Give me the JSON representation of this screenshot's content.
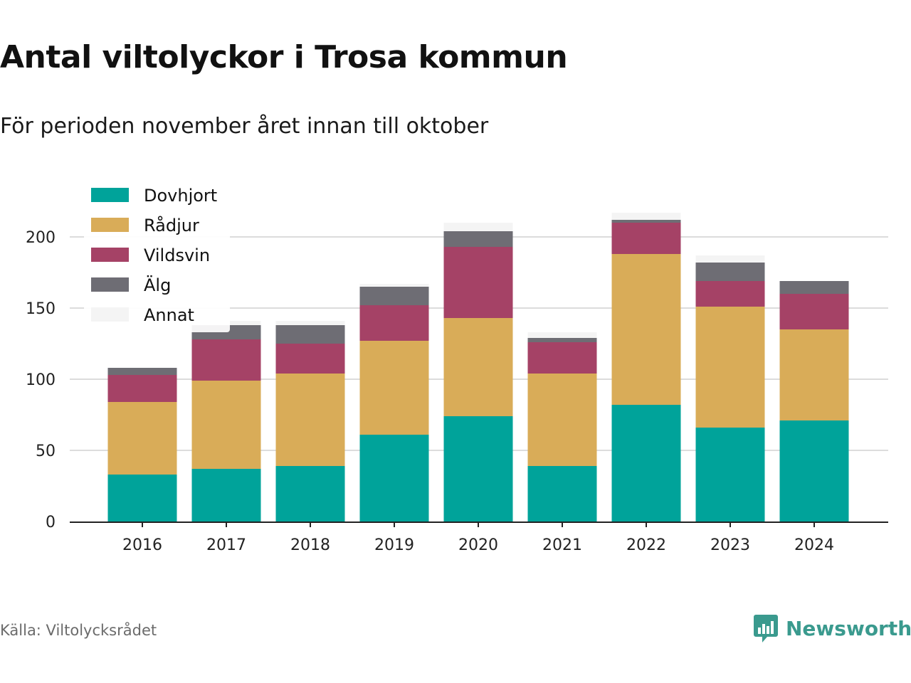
{
  "title": "Antal viltolyckor i Trosa kommun",
  "subtitle": "För perioden november året innan till oktober",
  "source": "Källa: Viltolycksrådet",
  "brand": "Newsworthy",
  "colors": {
    "Dovhjort": "#00a39a",
    "Rådjur": "#d9ac58",
    "Vildsvin": "#a54266",
    "Älg": "#6e6d74",
    "Annat": "#f4f4f4"
  },
  "chart_data": {
    "type": "bar",
    "stacked": true,
    "categories": [
      "2016",
      "2017",
      "2018",
      "2019",
      "2020",
      "2021",
      "2022",
      "2023",
      "2024"
    ],
    "series": [
      {
        "name": "Dovhjort",
        "values": [
          33,
          37,
          39,
          61,
          74,
          39,
          82,
          66,
          71
        ]
      },
      {
        "name": "Rådjur",
        "values": [
          51,
          62,
          65,
          66,
          69,
          65,
          106,
          85,
          64
        ]
      },
      {
        "name": "Vildsvin",
        "values": [
          19,
          29,
          21,
          25,
          50,
          22,
          22,
          18,
          25
        ]
      },
      {
        "name": "Älg",
        "values": [
          5,
          10,
          13,
          13,
          11,
          3,
          2,
          13,
          9
        ]
      },
      {
        "name": "Annat",
        "values": [
          0,
          3,
          3,
          2,
          6,
          4,
          5,
          5,
          0
        ]
      }
    ],
    "yticks": [
      0,
      50,
      100,
      150,
      200
    ],
    "ylim": [
      0,
      220
    ],
    "grid": true,
    "legend_position": "top-left"
  }
}
